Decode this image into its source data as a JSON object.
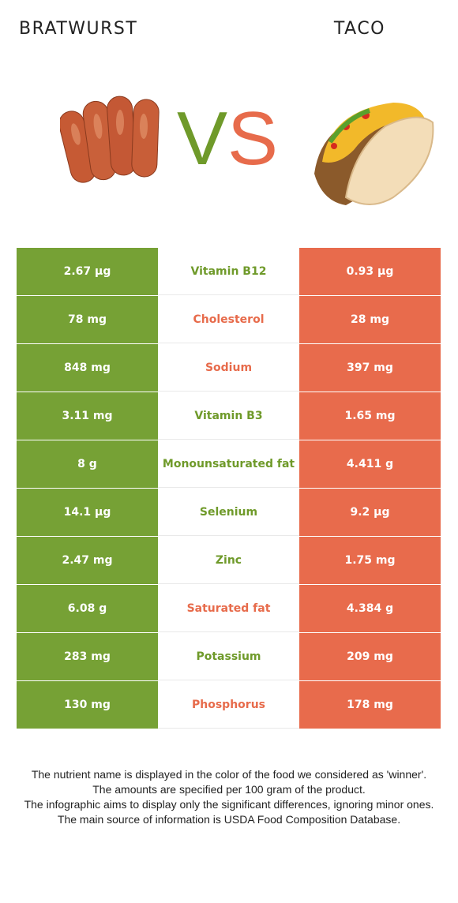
{
  "header": {
    "left_title": "BRATWURST",
    "right_title": "TACO",
    "vs_v": "V",
    "vs_s": "S"
  },
  "colors": {
    "bratwurst": "#76a135",
    "taco": "#e86b4c"
  },
  "rows": [
    {
      "nutrient": "Vitamin B12",
      "left": "2.67 µg",
      "right": "0.93 µg",
      "winner": "bratwurst"
    },
    {
      "nutrient": "Cholesterol",
      "left": "78 mg",
      "right": "28 mg",
      "winner": "taco"
    },
    {
      "nutrient": "Sodium",
      "left": "848 mg",
      "right": "397 mg",
      "winner": "taco"
    },
    {
      "nutrient": "Vitamin B3",
      "left": "3.11 mg",
      "right": "1.65 mg",
      "winner": "bratwurst"
    },
    {
      "nutrient": "Monounsaturated fat",
      "left": "8 g",
      "right": "4.411 g",
      "winner": "bratwurst"
    },
    {
      "nutrient": "Selenium",
      "left": "14.1 µg",
      "right": "9.2 µg",
      "winner": "bratwurst"
    },
    {
      "nutrient": "Zinc",
      "left": "2.47 mg",
      "right": "1.75 mg",
      "winner": "bratwurst"
    },
    {
      "nutrient": "Saturated fat",
      "left": "6.08 g",
      "right": "4.384 g",
      "winner": "taco"
    },
    {
      "nutrient": "Potassium",
      "left": "283 mg",
      "right": "209 mg",
      "winner": "bratwurst"
    },
    {
      "nutrient": "Phosphorus",
      "left": "130 mg",
      "right": "178 mg",
      "winner": "taco"
    }
  ],
  "footer": {
    "line1": "The nutrient name is displayed in the color of the food we considered as 'winner'.",
    "line2": "The amounts are specified per 100 gram of the product.",
    "line3": "The infographic aims to display only the significant differences, ignoring minor ones.",
    "line4": "The main source of information is USDA Food Composition Database."
  }
}
